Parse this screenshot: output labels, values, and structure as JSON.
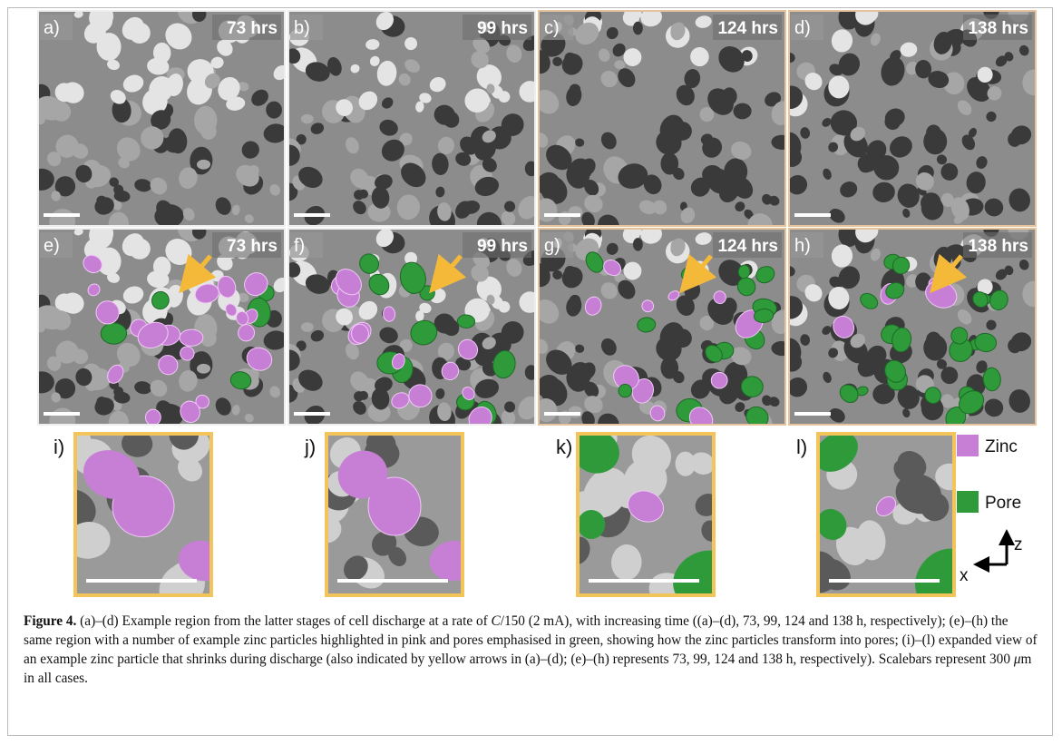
{
  "panels": [
    {
      "label": "a)",
      "time": "73 hrs"
    },
    {
      "label": "b)",
      "time": "99 hrs"
    },
    {
      "label": "c)",
      "time": "124 hrs"
    },
    {
      "label": "d)",
      "time": "138 hrs"
    },
    {
      "label": "e)",
      "time": "73 hrs"
    },
    {
      "label": "f)",
      "time": "99 hrs"
    },
    {
      "label": "g)",
      "time": "124 hrs"
    },
    {
      "label": "h)",
      "time": "138 hrs"
    }
  ],
  "insets": [
    "i)",
    "j)",
    "k)",
    "l)"
  ],
  "legend": [
    "Zinc",
    "Pore"
  ],
  "axes": {
    "z": "z",
    "x": "x"
  },
  "caption": {
    "label": "Figure 4.",
    "parts": [
      " (a)–(d) Example region from the latter stages of cell discharge at a rate of ",
      "C",
      "/150 (2 mA), with increasing time ((a)–(d), 73, 99, 124 and 138 h, respectively); (e)–(h) the same region with a number of example zinc particles highlighted in pink and pores emphasised in green, showing how the zinc particles transform into pores; (i)–(l) expanded view of an example zinc particle that shrinks during discharge (also indicated by yellow arrows in (a)–(d); (e)–(h) represents 73, 99, 124 and 138 h, respectively). Scalebars represent 300 ",
      "μ",
      "m in all cases."
    ]
  }
}
